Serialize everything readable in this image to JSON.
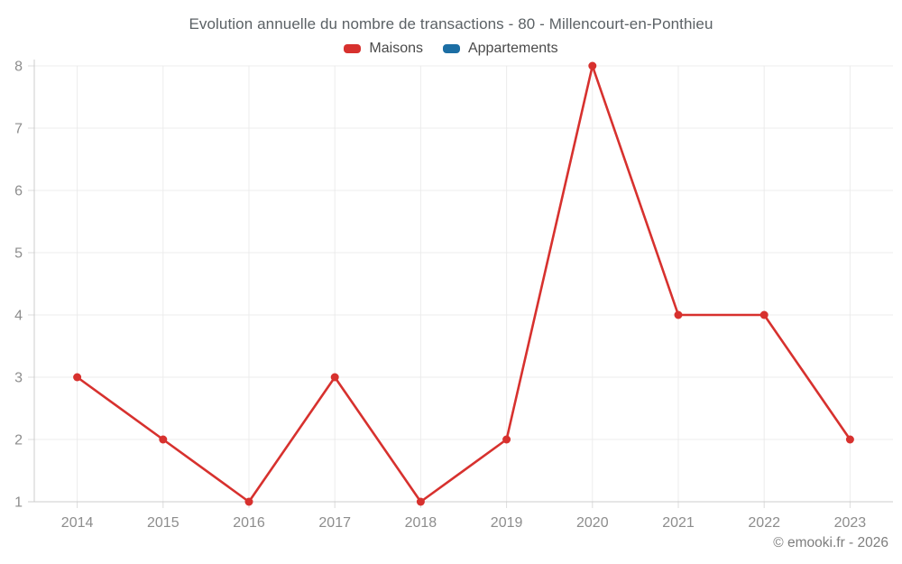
{
  "chart_data": {
    "type": "line",
    "title": "Evolution annuelle du nombre de transactions - 80 - Millencourt-en-Ponthieu",
    "x": [
      "2014",
      "2015",
      "2016",
      "2017",
      "2018",
      "2019",
      "2020",
      "2021",
      "2022",
      "2023"
    ],
    "series": [
      {
        "name": "Maisons",
        "color": "#d7312e",
        "values": [
          3,
          2,
          1,
          3,
          1,
          2,
          8,
          4,
          4,
          2
        ]
      },
      {
        "name": "Appartements",
        "color": "#1c6ea4",
        "values": []
      }
    ],
    "xlabel": "",
    "ylabel": "",
    "ylim": [
      1,
      8
    ],
    "yticks": [
      1,
      2,
      3,
      4,
      5,
      6,
      7,
      8
    ],
    "grid": true,
    "legend_position": "top",
    "marker": "circle"
  },
  "footer": {
    "copyright": "© emooki.fr - 2026"
  }
}
